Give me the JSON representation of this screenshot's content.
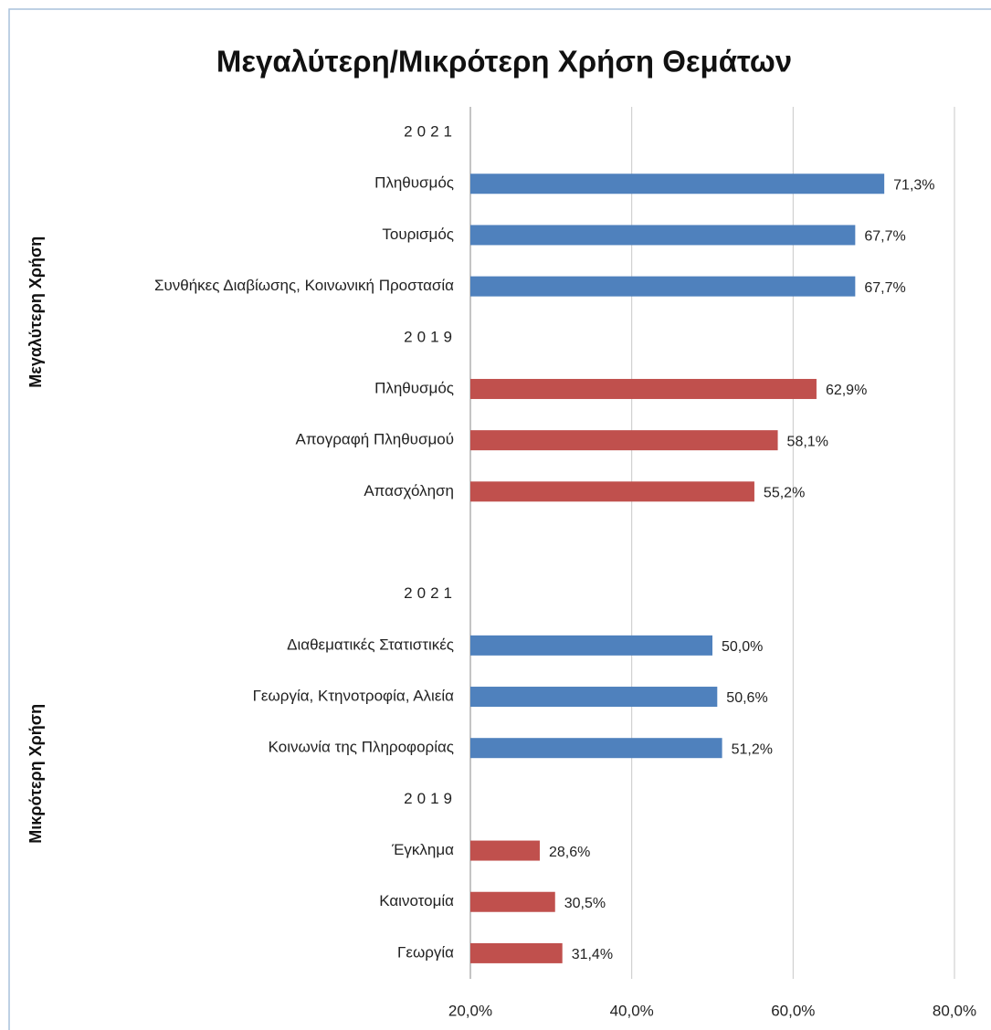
{
  "chart_data": {
    "type": "bar",
    "orientation": "horizontal",
    "title": "Μεγαλύτερη/Μικρότερη Χρήση Θεμάτων",
    "group_labels": [
      "Μεγαλύτερη Χρήση",
      "Μικρότερη Χρήση"
    ],
    "categories": [
      "2021",
      "Πληθυσμός",
      "Τουρισμός",
      "Συνθήκες Διαβίωσης, Κοινωνική Προστασία",
      "2019",
      "Πληθυσμός",
      "Απογραφή Πληθυσμού",
      "Απασχόληση",
      null,
      "2021",
      "Διαθεματικές Στατιστικές",
      "Γεωργία, Κτηνοτροφία, Αλιεία",
      "Κοινωνία της Πληροφορίας",
      "2019",
      "Έγκλημα",
      "Καινοτομία",
      "Γεωργία"
    ],
    "values": [
      null,
      71.3,
      67.7,
      67.7,
      null,
      62.9,
      58.1,
      55.2,
      null,
      null,
      50.0,
      50.6,
      51.2,
      null,
      28.6,
      30.5,
      31.4
    ],
    "value_labels": [
      null,
      "71,3%",
      "67,7%",
      "67,7%",
      null,
      "62,9%",
      "58,1%",
      "55,2%",
      null,
      null,
      "50,0%",
      "50,6%",
      "51,2%",
      null,
      "28,6%",
      "30,5%",
      "31,4%"
    ],
    "colors": [
      null,
      "#4f81bd",
      "#4f81bd",
      "#4f81bd",
      null,
      "#c0504d",
      "#c0504d",
      "#c0504d",
      null,
      null,
      "#4f81bd",
      "#4f81bd",
      "#4f81bd",
      null,
      "#c0504d",
      "#c0504d",
      "#c0504d"
    ],
    "xlim": [
      20,
      80
    ],
    "xticks": [
      {
        "value": 20,
        "label": "20,0%"
      },
      {
        "value": 40,
        "label": "40,0%"
      },
      {
        "value": 60,
        "label": "60,0%"
      },
      {
        "value": 80,
        "label": "80,0%"
      }
    ],
    "grid": true
  }
}
